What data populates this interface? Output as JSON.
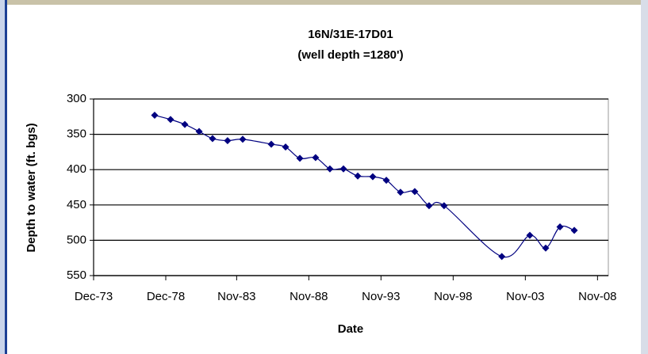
{
  "chart_data": {
    "type": "line",
    "title": "16N/31E-17D01",
    "subtitle": "(well depth =1280')",
    "x_label": "Date",
    "y_label": "Depth to water (ft. bgs)",
    "x": [
      1978.15,
      1979.25,
      1980.24,
      1981.23,
      1982.16,
      1983.2,
      1984.25,
      1986.23,
      1987.22,
      1988.21,
      1989.3,
      1990.29,
      1991.23,
      1992.22,
      1993.26,
      1994.2,
      1995.18,
      1996.17,
      1997.16,
      1998.2,
      2002.2,
      2004.14,
      2005.24,
      2006.23,
      2007.22
    ],
    "series": [
      {
        "name": "16N/31E-17D01",
        "color": "#000080",
        "values": [
          323,
          329,
          336,
          346,
          356,
          359,
          357,
          364,
          368,
          384,
          383,
          399,
          399,
          409,
          410,
          415,
          432,
          431,
          451,
          451,
          523,
          493,
          511,
          481,
          486
        ]
      }
    ],
    "xlim": [
      1973.92,
      2009.58
    ],
    "xticks": [
      {
        "value": 1973.92,
        "label": "Dec-73"
      },
      {
        "value": 1978.92,
        "label": "Dec-78"
      },
      {
        "value": 1983.83,
        "label": "Nov-83"
      },
      {
        "value": 1988.83,
        "label": "Nov-88"
      },
      {
        "value": 1993.83,
        "label": "Nov-93"
      },
      {
        "value": 1998.83,
        "label": "Nov-98"
      },
      {
        "value": 2003.83,
        "label": "Nov-03"
      },
      {
        "value": 2008.83,
        "label": "Nov-08"
      }
    ],
    "ylim": [
      300,
      550
    ],
    "yticks": [
      300,
      350,
      400,
      450,
      500,
      550
    ],
    "y_inverted": true,
    "grid": true,
    "smooth": true
  }
}
